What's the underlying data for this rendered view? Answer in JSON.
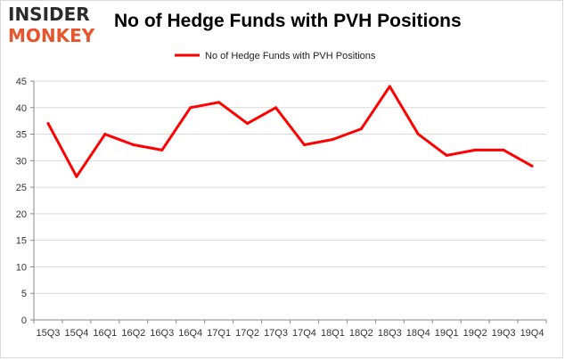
{
  "logo": {
    "line1": "INSIDER",
    "line2": "MONKEY"
  },
  "colors": {
    "series": "#ff0000",
    "grid": "#d9d9d9",
    "axis": "#888888",
    "logo_accent": "#e8542c"
  },
  "chart_data": {
    "type": "line",
    "title": "No of Hedge Funds with PVH Positions",
    "xlabel": "",
    "ylabel": "",
    "ylim": [
      0,
      45
    ],
    "yticks": [
      0,
      5,
      10,
      15,
      20,
      25,
      30,
      35,
      40,
      45
    ],
    "grid": true,
    "legend_position": "top-center",
    "categories": [
      "15Q3",
      "15Q4",
      "16Q1",
      "16Q2",
      "16Q3",
      "16Q4",
      "17Q1",
      "17Q2",
      "17Q3",
      "17Q4",
      "18Q1",
      "18Q2",
      "18Q3",
      "18Q4",
      "19Q1",
      "19Q2",
      "19Q3",
      "19Q4"
    ],
    "series": [
      {
        "name": "No of Hedge Funds with PVH Positions",
        "values": [
          37,
          27,
          35,
          33,
          32,
          40,
          41,
          37,
          40,
          33,
          34,
          36,
          44,
          35,
          31,
          32,
          32,
          29
        ]
      }
    ]
  }
}
